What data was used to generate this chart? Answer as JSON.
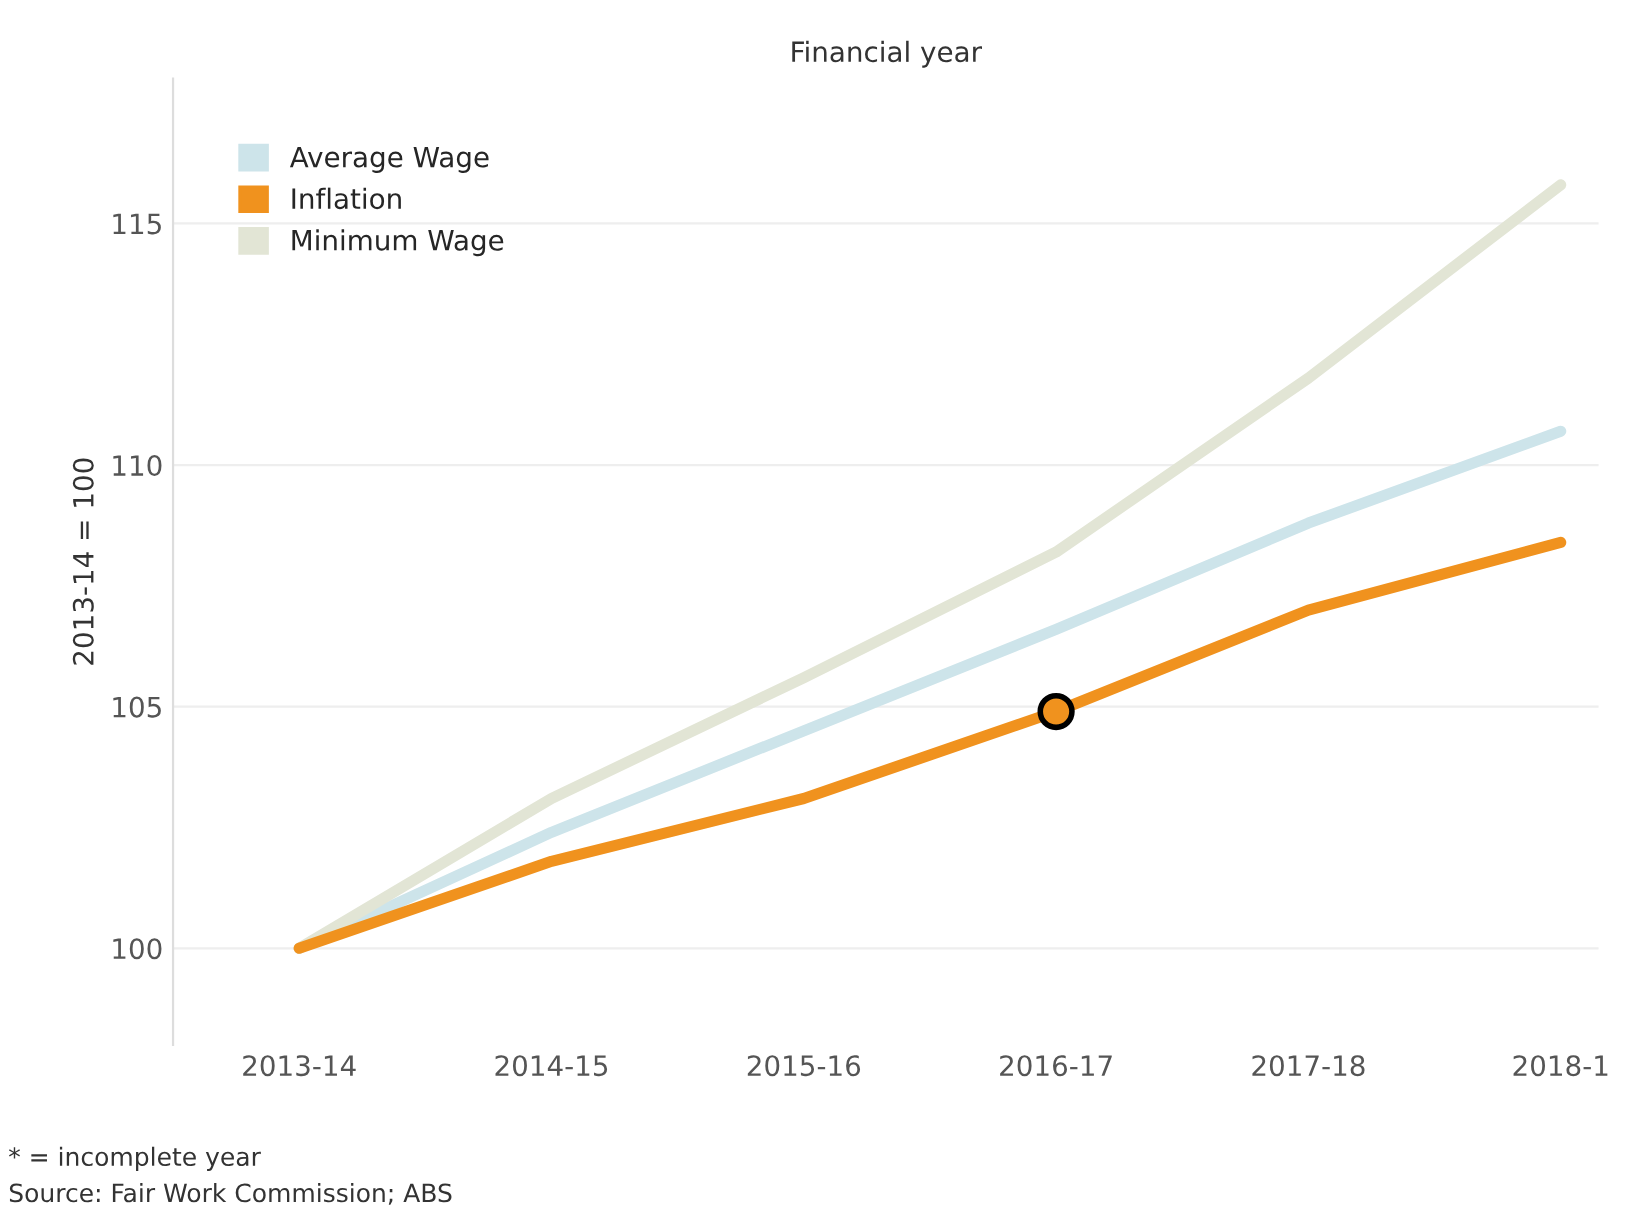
{
  "chart_data": {
    "type": "line",
    "title": "Financial year",
    "ylabel": "2013-14 = 100",
    "categories": [
      "2013-14",
      "2014-15",
      "2015-16",
      "2016-17",
      "2017-18",
      "2018-1"
    ],
    "series": [
      {
        "name": "Average Wage",
        "color": "#cde4ea",
        "values": [
          100,
          102.4,
          104.5,
          106.6,
          108.8,
          110.7
        ]
      },
      {
        "name": "Inflation",
        "color": "#f0921e",
        "values": [
          100,
          101.8,
          103.1,
          104.9,
          107.0,
          108.4
        ]
      },
      {
        "name": "Minimum Wage",
        "color": "#e2e5d5",
        "values": [
          100,
          103.1,
          105.6,
          108.2,
          111.8,
          115.8
        ]
      },
      {
        "type": "scatter",
        "color": "#f0921e",
        "x": [
          "2016-17"
        ],
        "values": [
          104.9
        ]
      }
    ],
    "ylim": [
      98,
      118
    ],
    "yticks": [
      100,
      105,
      110,
      115
    ],
    "grid": "y",
    "legend": "top left",
    "annotations": [
      "* = incomplete year",
      "Source: Fair Work Commission; ABS"
    ]
  }
}
